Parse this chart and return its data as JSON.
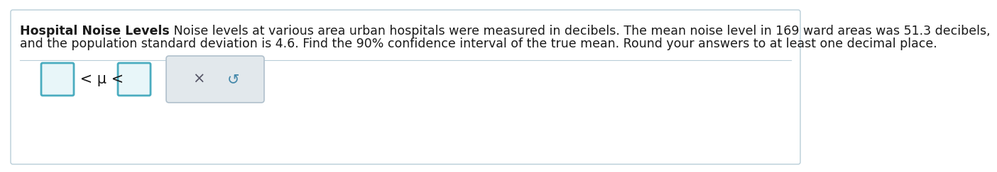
{
  "title_bold": "Hospital Noise Levels",
  "title_normal": " Noise levels at various area urban hospitals were measured in decibels. The mean noise level in 169 ward areas was 51.3 decibels,",
  "line2": "and the population standard deviation is 4.6. Find the 90% confidence interval of the true mean. Round your answers to at least one decimal place.",
  "mu_text": " < μ < ",
  "background_color": "#ffffff",
  "text_color": "#1a1a1a",
  "box_border_color": "#4aacbf",
  "answer_box_bg": "#e8f6f9",
  "button_box_bg": "#e2e8ec",
  "button_box_border": "#b0c0cc",
  "x_symbol": "×",
  "undo_symbol": "↺",
  "outer_border_color": "#b8cdd8",
  "font_size_text": 12.5,
  "font_size_formula": 13
}
